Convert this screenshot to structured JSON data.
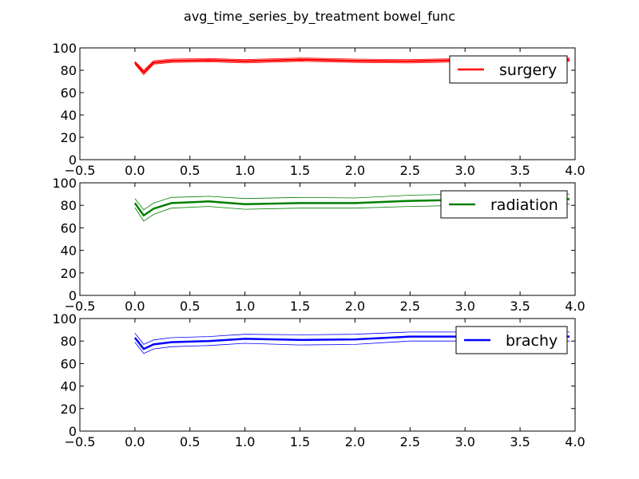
{
  "figure": {
    "title": "avg_time_series_by_treatment bowel_func"
  },
  "chart_data": [
    {
      "type": "line",
      "xlim": [
        -0.5,
        4.0
      ],
      "ylim": [
        0,
        100
      ],
      "xticks": [
        -0.5,
        0.0,
        0.5,
        1.0,
        1.5,
        2.0,
        2.5,
        3.0,
        3.5,
        4.0
      ],
      "xtick_labels": [
        "−0.5",
        "0.0",
        "0.5",
        "1.0",
        "1.5",
        "2.0",
        "2.5",
        "3.0",
        "3.5",
        "4.0"
      ],
      "yticks": [
        0,
        20,
        40,
        60,
        80,
        100
      ],
      "ytick_labels": [
        "0",
        "20",
        "40",
        "60",
        "80",
        "100"
      ],
      "grid": false,
      "legend_position": "upper-right",
      "series": [
        {
          "name": "surgery",
          "color": "#ff0000",
          "x": [
            0.0,
            0.08,
            0.17,
            0.33,
            0.67,
            1.0,
            1.5,
            2.0,
            2.5,
            3.0,
            3.5,
            3.95
          ],
          "mean": [
            87,
            78,
            87,
            88.5,
            89,
            88,
            89.5,
            88.5,
            88,
            89,
            89.5,
            89.5
          ],
          "upper": [
            88,
            80,
            88.5,
            90,
            90.5,
            89.5,
            91,
            90,
            89.5,
            90.5,
            91,
            91
          ],
          "lower": [
            85.5,
            76,
            85.5,
            87,
            87.5,
            86.5,
            88,
            87,
            86.5,
            87.5,
            88,
            88
          ]
        }
      ]
    },
    {
      "type": "line",
      "xlim": [
        -0.5,
        4.0
      ],
      "ylim": [
        0,
        100
      ],
      "xticks": [
        -0.5,
        0.0,
        0.5,
        1.0,
        1.5,
        2.0,
        2.5,
        3.0,
        3.5,
        4.0
      ],
      "xtick_labels": [
        "−0.5",
        "0.0",
        "0.5",
        "1.0",
        "1.5",
        "2.0",
        "2.5",
        "3.0",
        "3.5",
        "4.0"
      ],
      "yticks": [
        0,
        20,
        40,
        60,
        80,
        100
      ],
      "ytick_labels": [
        "0",
        "20",
        "40",
        "60",
        "80",
        "100"
      ],
      "grid": false,
      "legend_position": "upper-right",
      "series": [
        {
          "name": "radiation",
          "color": "#008000",
          "x": [
            0.0,
            0.08,
            0.17,
            0.33,
            0.67,
            1.0,
            1.5,
            2.0,
            2.5,
            3.0,
            3.5,
            3.95
          ],
          "mean": [
            82,
            71,
            77,
            82,
            83.5,
            81,
            82,
            82,
            84,
            85,
            85.5,
            85.5
          ],
          "upper": [
            86,
            76,
            82,
            87,
            88,
            86,
            87,
            86.5,
            89,
            90,
            90,
            90
          ],
          "lower": [
            78,
            66,
            72,
            77.5,
            79,
            76.5,
            77.5,
            77.5,
            79,
            80,
            81,
            81
          ]
        }
      ]
    },
    {
      "type": "line",
      "xlim": [
        -0.5,
        4.0
      ],
      "ylim": [
        0,
        100
      ],
      "xticks": [
        -0.5,
        0.0,
        0.5,
        1.0,
        1.5,
        2.0,
        2.5,
        3.0,
        3.5,
        4.0
      ],
      "xtick_labels": [
        "−0.5",
        "0.0",
        "0.5",
        "1.0",
        "1.5",
        "2.0",
        "2.5",
        "3.0",
        "3.5",
        "4.0"
      ],
      "yticks": [
        0,
        20,
        40,
        60,
        80,
        100
      ],
      "ytick_labels": [
        "0",
        "20",
        "40",
        "60",
        "80",
        "100"
      ],
      "grid": false,
      "legend_position": "upper-right",
      "series": [
        {
          "name": "brachy",
          "color": "#0000ff",
          "x": [
            0.0,
            0.08,
            0.17,
            0.33,
            0.67,
            1.0,
            1.5,
            2.0,
            2.5,
            3.0,
            3.5,
            3.95
          ],
          "mean": [
            83,
            73,
            77,
            79,
            80,
            82,
            81,
            81.5,
            84,
            84,
            84,
            84
          ],
          "upper": [
            87,
            77,
            81,
            83,
            84,
            86,
            85.5,
            86,
            88,
            88,
            88,
            88
          ],
          "lower": [
            79,
            69,
            73,
            75,
            76,
            78,
            76.5,
            77,
            80,
            80,
            80,
            80
          ]
        }
      ]
    }
  ]
}
